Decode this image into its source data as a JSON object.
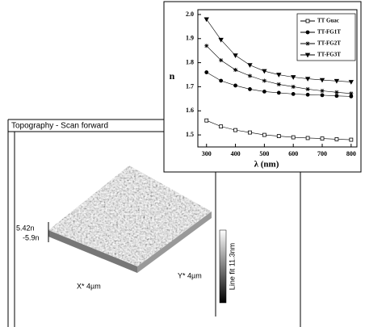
{
  "chart_data": {
    "type": "line",
    "x_label": "λ (nm)",
    "y_label": "n",
    "x": [
      300,
      350,
      400,
      450,
      500,
      550,
      600,
      650,
      700,
      750,
      800
    ],
    "series": [
      {
        "name": "TT Guac",
        "color": "#000000",
        "marker": "square",
        "values": [
          1.56,
          1.535,
          1.52,
          1.51,
          1.5,
          1.495,
          1.49,
          1.487,
          1.485,
          1.482,
          1.48
        ]
      },
      {
        "name": "TT-FG1T",
        "color": "#000000",
        "marker": "circle",
        "values": [
          1.76,
          1.725,
          1.705,
          1.69,
          1.68,
          1.675,
          1.67,
          1.667,
          1.665,
          1.662,
          1.66
        ]
      },
      {
        "name": "TT-FG2T",
        "color": "#000000",
        "marker": "star",
        "values": [
          1.87,
          1.81,
          1.77,
          1.745,
          1.725,
          1.71,
          1.7,
          1.69,
          1.683,
          1.677,
          1.672
        ]
      },
      {
        "name": "TT-FG3T",
        "color": "#000000",
        "marker": "triangle",
        "values": [
          1.98,
          1.895,
          1.83,
          1.79,
          1.765,
          1.75,
          1.74,
          1.733,
          1.728,
          1.724,
          1.72
        ]
      }
    ],
    "xlim": [
      270,
      820
    ],
    "xticks": [
      300,
      400,
      500,
      600,
      700,
      800
    ],
    "ylim": [
      1.45,
      2.02
    ],
    "yticks": [
      1.5,
      1.6,
      1.7,
      1.8,
      1.9,
      {
        "value": 2,
        "label": "2.0"
      }
    ],
    "legend": "upper right"
  },
  "screenshot": {
    "window_title": "Topography - Scan forward",
    "z_max": "5.42n",
    "z_min": "-5.9n",
    "x_label": "X* 4µm",
    "y_label": "Y* 4µm",
    "colorbar_label": "Line fit 11.3nm"
  }
}
